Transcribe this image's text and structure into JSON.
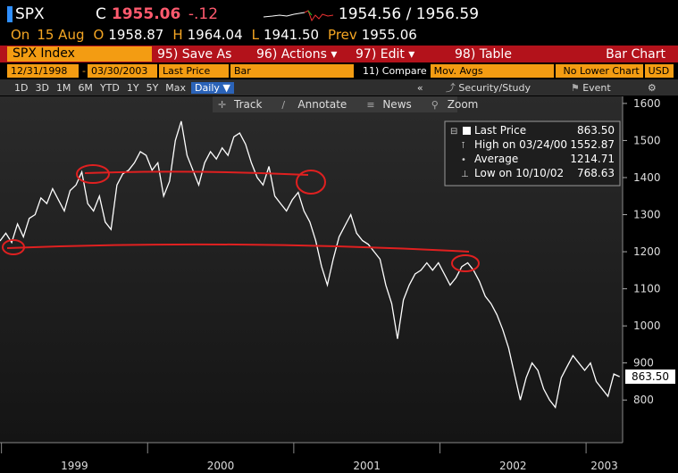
{
  "header": {
    "ticker": "SPX",
    "close_flag": "C",
    "price": "1955.06",
    "change": "-.12",
    "bid_ask": "1954.56 / 1956.59",
    "ohlc": [
      {
        "label": "On",
        "value": "15 Aug"
      },
      {
        "label": "O",
        "value": "1958.87"
      },
      {
        "label": "H",
        "value": "1964.04"
      },
      {
        "label": "L",
        "value": "1941.50"
      },
      {
        "label": "Prev",
        "value": "1955.06"
      }
    ]
  },
  "toolbar": {
    "security": "SPX Index",
    "buttons": [
      "95) Save As",
      "96) Actions ▾",
      "97) Edit ▾",
      "98) Table"
    ],
    "view": "Bar Chart"
  },
  "settings": {
    "start": "12/31/1998",
    "end": "03/30/2003",
    "field": "Last Price",
    "style": "Bar",
    "compare": "11) Compare",
    "mov_avgs": "Mov. Avgs",
    "lower": "No Lower Chart",
    "currency": "USD"
  },
  "tabs": {
    "periods": [
      "1D",
      "3D",
      "1M",
      "6M",
      "YTD",
      "1Y",
      "5Y",
      "Max"
    ],
    "frequency": "Daily ▼",
    "collapse": "«",
    "study": "Security/Study",
    "event": "Event"
  },
  "chart_tools": [
    "Track",
    "Annotate",
    "News",
    "Zoom"
  ],
  "chart_data": {
    "type": "line",
    "x": [
      1998.99,
      1999.03,
      1999.07,
      1999.11,
      1999.15,
      1999.19,
      1999.23,
      1999.27,
      1999.31,
      1999.35,
      1999.39,
      1999.43,
      1999.47,
      1999.51,
      1999.55,
      1999.59,
      1999.63,
      1999.67,
      1999.71,
      1999.75,
      1999.79,
      1999.83,
      1999.87,
      1999.91,
      1999.95,
      1999.99,
      2000.03,
      2000.07,
      2000.11,
      2000.15,
      2000.19,
      2000.23,
      2000.27,
      2000.31,
      2000.35,
      2000.39,
      2000.43,
      2000.47,
      2000.51,
      2000.55,
      2000.59,
      2000.63,
      2000.67,
      2000.71,
      2000.75,
      2000.79,
      2000.83,
      2000.87,
      2000.91,
      2000.95,
      2000.99,
      2001.03,
      2001.07,
      2001.11,
      2001.15,
      2001.19,
      2001.23,
      2001.27,
      2001.31,
      2001.35,
      2001.39,
      2001.43,
      2001.47,
      2001.51,
      2001.55,
      2001.59,
      2001.63,
      2001.67,
      2001.71,
      2001.75,
      2001.79,
      2001.83,
      2001.87,
      2001.91,
      2001.95,
      2001.99,
      2002.03,
      2002.07,
      2002.11,
      2002.15,
      2002.19,
      2002.23,
      2002.27,
      2002.31,
      2002.35,
      2002.39,
      2002.43,
      2002.47,
      2002.51,
      2002.55,
      2002.59,
      2002.63,
      2002.67,
      2002.71,
      2002.75,
      2002.79,
      2002.83,
      2002.87,
      2002.91,
      2002.95,
      2002.99,
      2003.03,
      2003.07,
      2003.11,
      2003.15,
      2003.19,
      2003.23
    ],
    "series": [
      {
        "name": "Last Price",
        "color": "#ffffff",
        "values": [
          1229,
          1250,
          1225,
          1275,
          1240,
          1290,
          1300,
          1345,
          1330,
          1370,
          1340,
          1310,
          1365,
          1380,
          1415,
          1330,
          1310,
          1350,
          1280,
          1260,
          1380,
          1410,
          1420,
          1440,
          1470,
          1460,
          1420,
          1440,
          1350,
          1390,
          1500,
          1552,
          1460,
          1420,
          1380,
          1440,
          1470,
          1450,
          1480,
          1460,
          1510,
          1520,
          1490,
          1440,
          1400,
          1380,
          1430,
          1350,
          1330,
          1310,
          1340,
          1360,
          1310,
          1280,
          1230,
          1160,
          1110,
          1180,
          1240,
          1270,
          1300,
          1250,
          1230,
          1220,
          1200,
          1180,
          1110,
          1060,
          965,
          1070,
          1110,
          1140,
          1150,
          1170,
          1150,
          1170,
          1140,
          1110,
          1130,
          1160,
          1170,
          1150,
          1120,
          1080,
          1060,
          1030,
          990,
          940,
          870,
          800,
          860,
          900,
          880,
          830,
          800,
          780,
          860,
          890,
          920,
          900,
          880,
          900,
          850,
          830,
          810,
          870,
          863
        ]
      }
    ],
    "xlim": [
      1998.99,
      2003.25
    ],
    "xticks": [
      1999,
      2000,
      2001,
      2002,
      2003
    ],
    "ylim": [
      685,
      1619
    ],
    "yticks": [
      800,
      900,
      1000,
      1100,
      1200,
      1300,
      1400,
      1500,
      1600
    ],
    "last_label": "863.50",
    "legend": [
      {
        "label": "High on 03/24/00",
        "value": "1552.87"
      },
      {
        "label": "Average",
        "value": "1214.71"
      },
      {
        "label": "Low on 10/10/02",
        "value": "768.63"
      }
    ]
  }
}
